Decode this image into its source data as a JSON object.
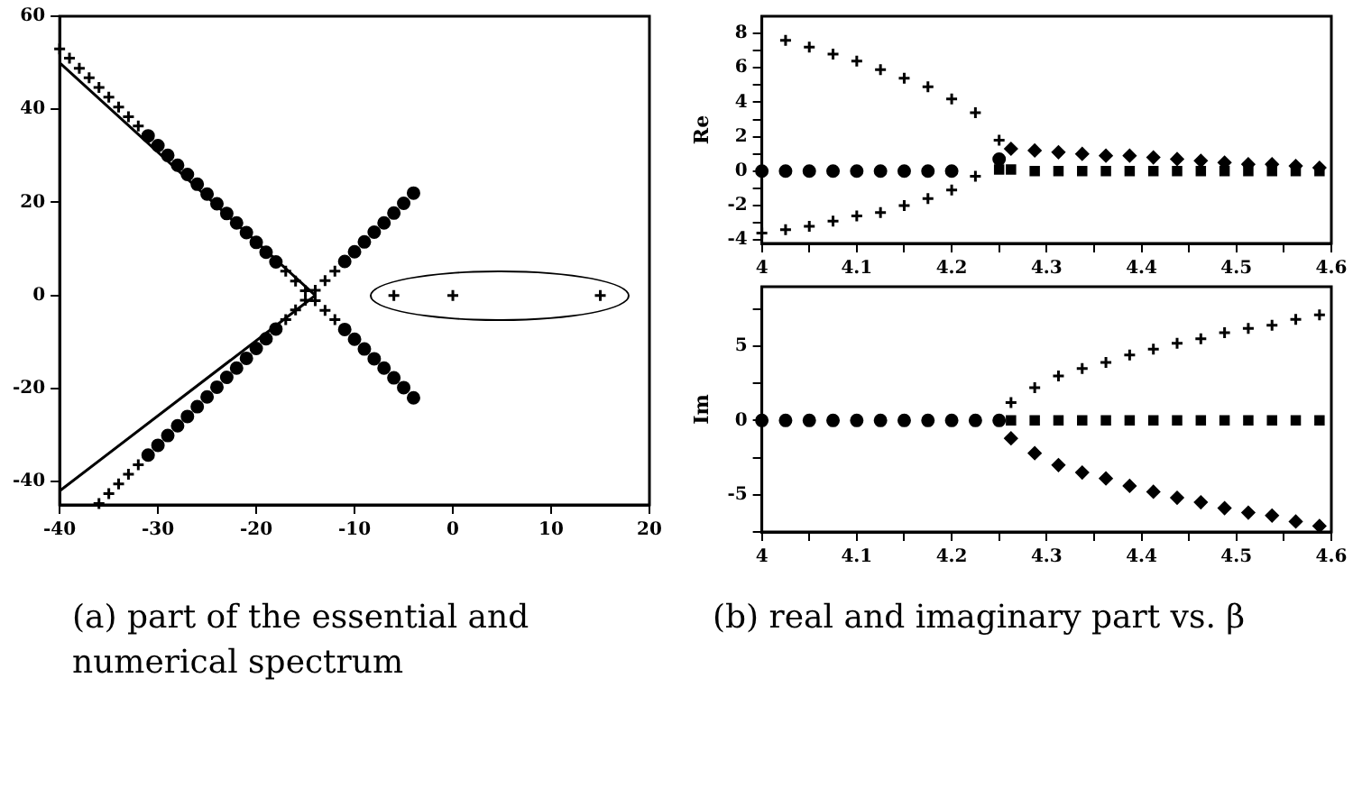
{
  "chart_data": [
    {
      "type": "scatter",
      "annotations": [
        "(a) part of the essential and numerical spectrum"
      ],
      "xlim": [
        -40,
        20
      ],
      "xticks": [
        -40,
        -30,
        -20,
        -10,
        0,
        10,
        20
      ],
      "ylim": [
        -45,
        60
      ],
      "yticks": [
        -40,
        -20,
        0,
        20,
        40,
        60
      ],
      "grid": false,
      "legend": false,
      "series": [
        {
          "type": "line",
          "color": "#000000",
          "marker": "none",
          "x": [
            -40,
            -14,
            -40
          ],
          "values": [
            50,
            0,
            -42
          ]
        },
        {
          "color": "#000000",
          "marker": "cross",
          "x": [
            -40,
            -39,
            -38,
            -37,
            -36,
            -35,
            -34,
            -33,
            -32,
            -17,
            -16,
            -15,
            -14,
            -13,
            -12,
            -36,
            -35,
            -34,
            -33,
            -32,
            -17,
            -16,
            -15,
            -14,
            -13,
            -12,
            -6,
            0,
            15
          ],
          "values": [
            53,
            51,
            48.8,
            46.8,
            44.7,
            42.6,
            40.5,
            38.4,
            36.4,
            5.2,
            3.1,
            1,
            -1.1,
            -3.2,
            -5.2,
            -44.7,
            -42.6,
            -40.5,
            -38.4,
            -36.4,
            -5.2,
            -3.1,
            -1,
            1.1,
            3.2,
            5.2,
            0,
            0,
            0
          ]
        },
        {
          "color": "#000000",
          "marker": "circle",
          "x": [
            -31,
            -30,
            -29,
            -28,
            -27,
            -26,
            -25,
            -24,
            -23,
            -22,
            -21,
            -20,
            -19,
            -18,
            -11,
            -10,
            -9,
            -8,
            -7,
            -6,
            -5,
            -4,
            -31,
            -30,
            -29,
            -28,
            -27,
            -26,
            -25,
            -24,
            -23,
            -22,
            -21,
            -20,
            -19,
            -18,
            -11,
            -10,
            -9,
            -8,
            -7,
            -6,
            -5,
            -4
          ],
          "values": [
            34.3,
            32.2,
            30.1,
            28,
            26,
            23.9,
            21.8,
            19.7,
            17.6,
            15.6,
            13.5,
            11.4,
            9.3,
            7.2,
            -7.3,
            -9.4,
            -11.5,
            -13.6,
            -15.6,
            -17.7,
            -19.8,
            -22,
            -34.3,
            -32.2,
            -30.1,
            -28,
            -26,
            -23.9,
            -21.8,
            -19.7,
            -17.6,
            -15.6,
            -13.5,
            -11.4,
            -9.3,
            -7.2,
            7.3,
            9.4,
            11.5,
            13.6,
            15.6,
            17.7,
            19.8,
            22
          ]
        }
      ]
    },
    {
      "type": "scatter",
      "ylabel": "Re",
      "xlim": [
        4,
        4.6
      ],
      "xticks": [
        4,
        {
          "value": 4.05,
          "label": null
        },
        4.1,
        {
          "value": 4.15,
          "label": null
        },
        4.2,
        {
          "value": 4.25,
          "label": null
        },
        4.3,
        {
          "value": 4.35,
          "label": null
        },
        4.4,
        {
          "value": 4.45,
          "label": null
        },
        4.5,
        {
          "value": 4.55,
          "label": null
        },
        4.6
      ],
      "ylim": [
        -4.2,
        9
      ],
      "yticks": [
        -4,
        {
          "value": -3,
          "label": null
        },
        -2,
        {
          "value": -1,
          "label": null
        },
        0,
        {
          "value": 1,
          "label": null
        },
        2,
        {
          "value": 3,
          "label": null
        },
        4,
        {
          "value": 5,
          "label": null
        },
        6,
        {
          "value": 7,
          "label": null
        },
        8
      ],
      "grid": false,
      "legend": false,
      "series": [
        {
          "color": "#000000",
          "marker": "cross",
          "x": [
            4.025,
            4.05,
            4.075,
            4.1,
            4.125,
            4.15,
            4.175,
            4.2,
            4.225,
            4.25
          ],
          "values": [
            7.6,
            7.2,
            6.8,
            6.4,
            5.9,
            5.4,
            4.9,
            4.2,
            3.4,
            1.8
          ]
        },
        {
          "color": "#000000",
          "marker": "diamond",
          "x": [
            4.2625,
            4.2875,
            4.3125,
            4.3375,
            4.3625,
            4.3875,
            4.4125,
            4.4375,
            4.4625,
            4.4875,
            4.5125,
            4.5375,
            4.5625,
            4.5875
          ],
          "values": [
            1.3,
            1.2,
            1.1,
            1,
            0.9,
            0.9,
            0.8,
            0.7,
            0.6,
            0.5,
            0.4,
            0.4,
            0.3,
            0.2
          ]
        },
        {
          "color": "#000000",
          "marker": "cross",
          "x": [
            4,
            4.025,
            4.05,
            4.075,
            4.1,
            4.125,
            4.15,
            4.175,
            4.2,
            4.225
          ],
          "values": [
            -3.6,
            -3.4,
            -3.2,
            -2.9,
            -2.6,
            -2.4,
            -2,
            -1.6,
            -1.1,
            -0.3
          ]
        },
        {
          "color": "#000000",
          "marker": "circle",
          "x": [
            4,
            4.025,
            4.05,
            4.075,
            4.1,
            4.125,
            4.15,
            4.175,
            4.2,
            4.25
          ],
          "values": [
            0,
            0,
            0,
            0,
            0,
            0,
            0,
            0,
            0,
            0.7
          ]
        },
        {
          "color": "#000000",
          "marker": "square",
          "x": [
            4.25,
            4.2625,
            4.2875,
            4.3125,
            4.3375,
            4.3625,
            4.3875,
            4.4125,
            4.4375,
            4.4625,
            4.4875,
            4.5125,
            4.5375,
            4.5625,
            4.5875
          ],
          "values": [
            0.1,
            0.1,
            0,
            0,
            0,
            0,
            0,
            0,
            0,
            0,
            0,
            0,
            0,
            0,
            0
          ]
        }
      ]
    },
    {
      "type": "scatter",
      "ylabel": "Im",
      "annotations": [
        "(b) real and imaginary part vs. β"
      ],
      "xlim": [
        4,
        4.6
      ],
      "xticks": [
        4,
        {
          "value": 4.05,
          "label": null
        },
        4.1,
        {
          "value": 4.15,
          "label": null
        },
        4.2,
        {
          "value": 4.25,
          "label": null
        },
        4.3,
        {
          "value": 4.35,
          "label": null
        },
        4.4,
        {
          "value": 4.45,
          "label": null
        },
        4.5,
        {
          "value": 4.55,
          "label": null
        },
        4.6
      ],
      "ylim": [
        -7.5,
        9
      ],
      "yticks": [
        {
          "value": -7.5,
          "label": null
        },
        -5,
        {
          "value": -2.5,
          "label": null
        },
        0,
        {
          "value": 2.5,
          "label": null
        },
        5,
        {
          "value": 7.5,
          "label": null
        }
      ],
      "grid": false,
      "legend": false,
      "series": [
        {
          "color": "#000000",
          "marker": "circle",
          "x": [
            4,
            4.025,
            4.05,
            4.075,
            4.1,
            4.125,
            4.15,
            4.175,
            4.2,
            4.225,
            4.25
          ],
          "values": [
            0,
            0,
            0,
            0,
            0,
            0,
            0,
            0,
            0,
            0,
            0
          ]
        },
        {
          "color": "#000000",
          "marker": "cross",
          "x": [
            4.2625,
            4.2875,
            4.3125,
            4.3375,
            4.3625,
            4.3875,
            4.4125,
            4.4375,
            4.4625,
            4.4875,
            4.5125,
            4.5375,
            4.5625,
            4.5875
          ],
          "values": [
            1.2,
            2.2,
            3,
            3.5,
            3.9,
            4.4,
            4.8,
            5.2,
            5.5,
            5.9,
            6.2,
            6.4,
            6.8,
            7.1
          ]
        },
        {
          "color": "#000000",
          "marker": "diamond",
          "x": [
            4.2625,
            4.2875,
            4.3125,
            4.3375,
            4.3625,
            4.3875,
            4.4125,
            4.4375,
            4.4625,
            4.4875,
            4.5125,
            4.5375,
            4.5625,
            4.5875
          ],
          "values": [
            -1.2,
            -2.2,
            -3,
            -3.5,
            -3.9,
            -4.4,
            -4.8,
            -5.2,
            -5.5,
            -5.9,
            -6.2,
            -6.4,
            -6.8,
            -7.1
          ]
        },
        {
          "color": "#000000",
          "marker": "square",
          "x": [
            4.2625,
            4.2875,
            4.3125,
            4.3375,
            4.3625,
            4.3875,
            4.4125,
            4.4375,
            4.4625,
            4.4875,
            4.5125,
            4.5375,
            4.5625,
            4.5875
          ],
          "values": [
            0,
            0,
            0,
            0,
            0,
            0,
            0,
            0,
            0,
            0,
            0,
            0,
            0,
            0
          ]
        }
      ]
    }
  ]
}
